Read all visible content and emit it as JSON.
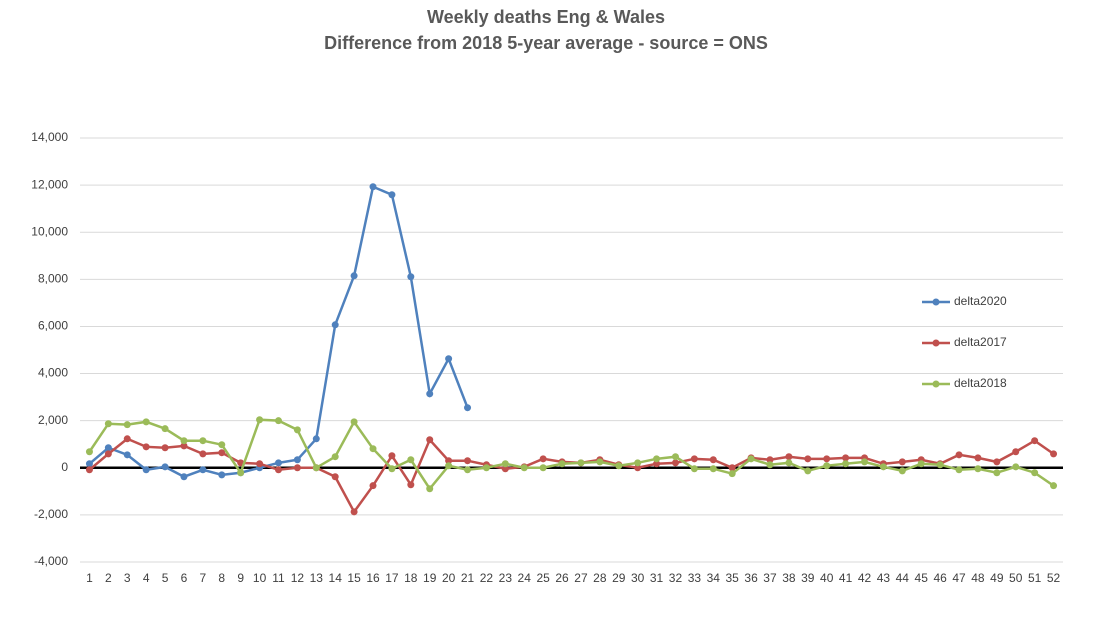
{
  "chart_data": {
    "type": "line",
    "title": "Weekly deaths Eng & Wales",
    "subtitle": "Difference from 2018 5-year average - source = ONS",
    "categories": [
      "1",
      "2",
      "3",
      "4",
      "5",
      "6",
      "7",
      "8",
      "9",
      "10",
      "11",
      "12",
      "13",
      "14",
      "15",
      "16",
      "17",
      "18",
      "19",
      "20",
      "21",
      "22",
      "23",
      "24",
      "25",
      "26",
      "27",
      "28",
      "29",
      "30",
      "31",
      "32",
      "33",
      "34",
      "35",
      "36",
      "37",
      "38",
      "39",
      "40",
      "41",
      "42",
      "43",
      "44",
      "45",
      "46",
      "47",
      "48",
      "49",
      "50",
      "51",
      "52"
    ],
    "series": [
      {
        "name": "delta2020",
        "color": "#4f81bd",
        "values": [
          170,
          850,
          550,
          -85,
          40,
          -380,
          -85,
          -300,
          -210,
          0,
          210,
          340,
          1230,
          6070,
          8150,
          11930,
          11590,
          8110,
          3140,
          4630,
          2550,
          null,
          null,
          null,
          null,
          null,
          null,
          null,
          null,
          null,
          null,
          null,
          null,
          null,
          null,
          null,
          null,
          null,
          null,
          null,
          null,
          null,
          null,
          null,
          null,
          null,
          null,
          null,
          null,
          null,
          null,
          null
        ]
      },
      {
        "name": "delta2017",
        "color": "#c0504d",
        "values": [
          -85,
          590,
          1230,
          890,
          850,
          930,
          590,
          640,
          210,
          170,
          -85,
          0,
          0,
          -380,
          -1870,
          -760,
          510,
          -720,
          1190,
          300,
          300,
          130,
          -40,
          40,
          380,
          250,
          210,
          340,
          130,
          0,
          170,
          210,
          380,
          340,
          0,
          420,
          340,
          470,
          380,
          380,
          420,
          420,
          170,
          250,
          340,
          170,
          550,
          420,
          250,
          680,
          1150,
          590
        ]
      },
      {
        "name": "delta2018",
        "color": "#9bbb59",
        "values": [
          680,
          1870,
          1830,
          1950,
          1660,
          1150,
          1150,
          980,
          -210,
          2040,
          2000,
          1610,
          0,
          470,
          1950,
          810,
          -40,
          340,
          -890,
          85,
          -85,
          0,
          170,
          0,
          0,
          170,
          210,
          250,
          85,
          210,
          380,
          470,
          -40,
          -40,
          -250,
          380,
          130,
          210,
          -130,
          85,
          170,
          250,
          40,
          -130,
          170,
          130,
          -85,
          -40,
          -210,
          40,
          -210,
          -760
        ]
      }
    ],
    "ylim": [
      -4000,
      14000
    ],
    "yticks": [
      {
        "value": 14000,
        "label": "14,000"
      },
      {
        "value": 12000,
        "label": "12,000"
      },
      {
        "value": 10000,
        "label": "10,000"
      },
      {
        "value": 8000,
        "label": "8,000"
      },
      {
        "value": 6000,
        "label": "6,000"
      },
      {
        "value": 4000,
        "label": "4,000"
      },
      {
        "value": 2000,
        "label": "2,000"
      },
      0,
      {
        "value": -2000,
        "label": "-2,000"
      },
      {
        "value": -4000,
        "label": "-4,000"
      }
    ],
    "grid": true,
    "legend": "right"
  }
}
